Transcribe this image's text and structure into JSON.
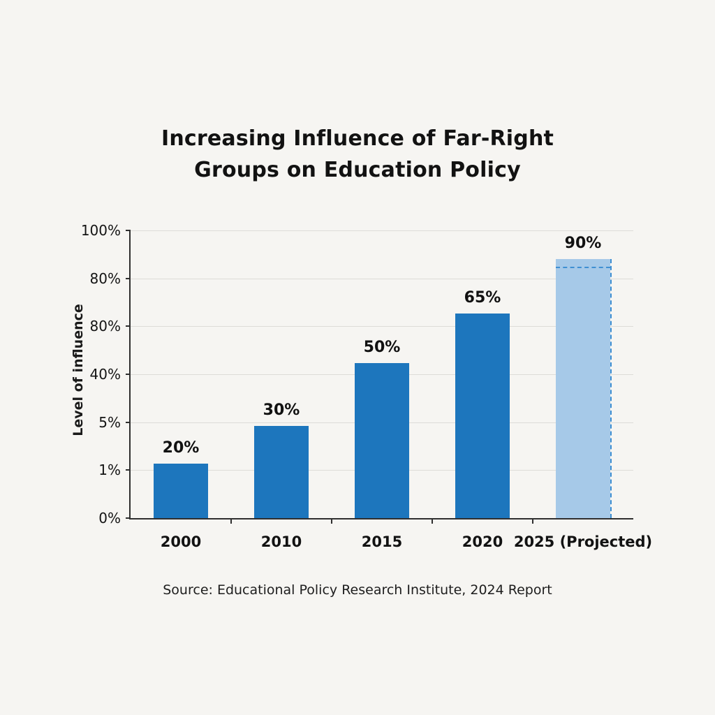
{
  "page": {
    "title_lines": [
      "Increasing Influence of Far-Right",
      "Groups on Education Policy"
    ],
    "y_axis_label": "Level of influence",
    "source": "Source: Educational Policy Research Institute, 2024 Report"
  },
  "chart_data": {
    "type": "bar",
    "title": "Increasing Influence of Far-Right Groups on Education Policy",
    "xlabel": "",
    "ylabel": "Level of influence",
    "categories": [
      "2000",
      "2010",
      "2015",
      "2020",
      "2025 (Projected)"
    ],
    "values": [
      20,
      30,
      50,
      65,
      90
    ],
    "value_labels": [
      "20%",
      "30%",
      "50%",
      "65%",
      "90%"
    ],
    "ytick_labels_top_to_bottom": [
      "100%",
      "80%",
      "80%",
      "40%",
      "5%",
      "1%",
      "0%"
    ],
    "ylim": [
      0,
      100
    ],
    "grid": true,
    "legend": "none",
    "projected_index": 4,
    "projected_reference_frac": 0.87,
    "bar_height_fracs": [
      0.19,
      0.32,
      0.54,
      0.71,
      0.9
    ],
    "bar_color": "#1d76bd",
    "projected_bar_color": "#a6c9e8",
    "projected_outline_color": "#3f8fd2",
    "source": "Source: Educational Policy Research Institute, 2024 Report"
  }
}
